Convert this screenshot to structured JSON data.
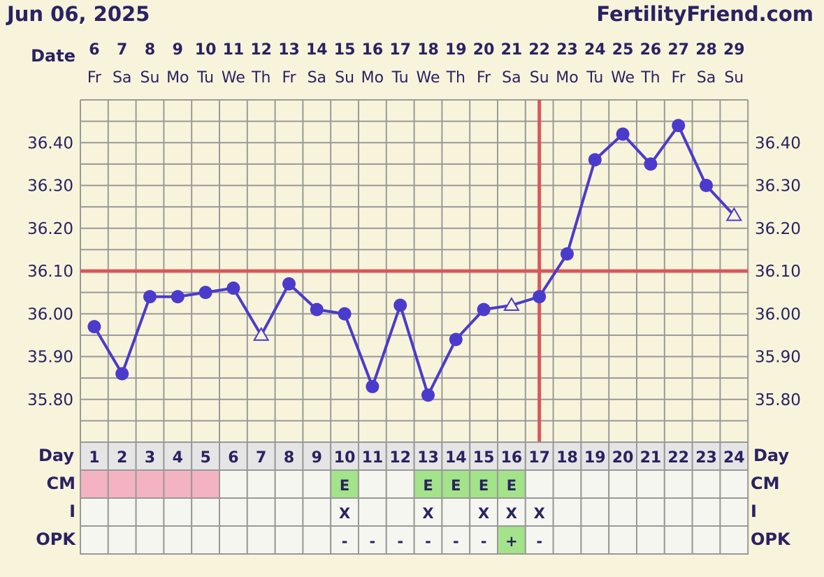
{
  "header": {
    "date": "Jun 06, 2025",
    "site": "FertilityFriend.com"
  },
  "labels": {
    "date": "Date",
    "day": "Day",
    "cm": "CM",
    "intercourse": "I",
    "opk": "OPK"
  },
  "colors": {
    "temp_line": "#4b3bcc",
    "coverline": "#d9575a",
    "ovulation_line": "#d9575a",
    "grid": "#999999",
    "menstruation": "#f4b3c3",
    "fertile": "#a3e389",
    "text": "#2a2262"
  },
  "chart_data": {
    "type": "line",
    "title": "",
    "ylim": [
      35.7,
      36.5
    ],
    "y_ticks": [
      "35.80",
      "35.90",
      "36.00",
      "36.10",
      "36.20",
      "36.30",
      "36.40"
    ],
    "grid": true,
    "dates": [
      "6",
      "7",
      "8",
      "9",
      "10",
      "11",
      "12",
      "13",
      "14",
      "15",
      "16",
      "17",
      "18",
      "19",
      "20",
      "21",
      "22",
      "23",
      "24",
      "25",
      "26",
      "27",
      "28",
      "29"
    ],
    "weekdays": [
      "Fr",
      "Sa",
      "Su",
      "Mo",
      "Tu",
      "We",
      "Th",
      "Fr",
      "Sa",
      "Su",
      "Mo",
      "Tu",
      "We",
      "Th",
      "Fr",
      "Sa",
      "Su",
      "Mo",
      "Tu",
      "We",
      "Th",
      "Fr",
      "Sa",
      "Su"
    ],
    "cycle_days": [
      "1",
      "2",
      "3",
      "4",
      "5",
      "6",
      "7",
      "8",
      "9",
      "10",
      "11",
      "12",
      "13",
      "14",
      "15",
      "16",
      "17",
      "18",
      "19",
      "20",
      "21",
      "22",
      "23",
      "24"
    ],
    "series": [
      {
        "values": [
          35.97,
          35.86,
          36.04,
          36.04,
          36.05,
          36.06,
          35.95,
          36.07,
          36.01,
          36.0,
          35.83,
          36.02,
          35.81,
          35.94,
          36.01,
          36.02,
          36.04,
          36.14,
          36.36,
          36.42,
          36.35,
          36.44,
          36.3,
          36.23
        ],
        "markers": [
          "dot",
          "dot",
          "dot",
          "dot",
          "dot",
          "dot",
          "open-triangle",
          "dot",
          "dot",
          "dot",
          "dot",
          "dot",
          "dot",
          "dot",
          "dot",
          "open-triangle",
          "dot",
          "dot",
          "dot",
          "dot",
          "dot",
          "dot",
          "dot",
          "open-triangle"
        ]
      }
    ],
    "coverline": 36.1,
    "ovulation_day": 17,
    "rows": {
      "cm": [
        "menstruation",
        "menstruation",
        "menstruation",
        "menstruation",
        "menstruation",
        "",
        "",
        "",
        "",
        "E",
        "",
        "",
        "E",
        "E",
        "E",
        "E",
        "",
        "",
        "",
        "",
        "",
        "",
        "",
        ""
      ],
      "intercourse": [
        "",
        "",
        "",
        "",
        "",
        "",
        "",
        "",
        "",
        "X",
        "",
        "",
        "X",
        "",
        "X",
        "X",
        "X",
        "",
        "",
        "",
        "",
        "",
        "",
        ""
      ],
      "opk": [
        "",
        "",
        "",
        "",
        "",
        "",
        "",
        "",
        "",
        "-",
        "-",
        "-",
        "-",
        "-",
        "-",
        "+",
        "-",
        "",
        "",
        "",
        "",
        "",
        "",
        ""
      ]
    }
  }
}
